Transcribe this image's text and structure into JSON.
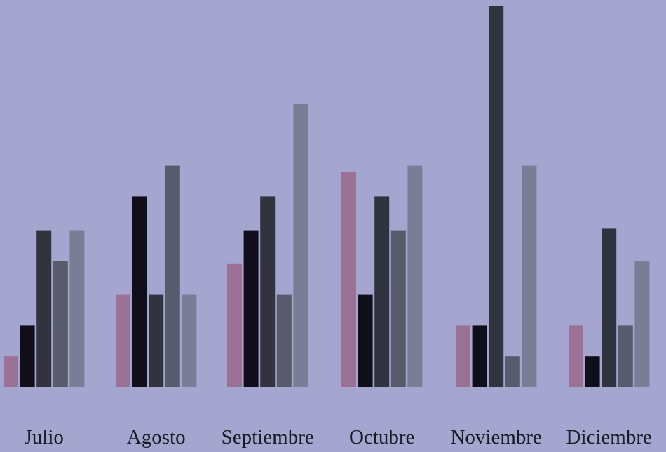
{
  "chart_data": {
    "type": "bar",
    "categories": [
      "Julio",
      "Agosto",
      "Septiembre",
      "Octubre",
      "Noviembre",
      "Diciembre"
    ],
    "series": [
      {
        "values": [
          1,
          3,
          4,
          7,
          2,
          2
        ],
        "color": "#9b7196"
      },
      {
        "values": [
          2,
          6.2,
          5.1,
          3,
          2,
          1
        ],
        "color": "#100e18"
      },
      {
        "values": [
          5.1,
          3,
          6.2,
          6.2,
          12.4,
          5.15
        ],
        "color": "#31333f"
      },
      {
        "values": [
          4.1,
          7.2,
          3,
          5.1,
          1,
          2
        ],
        "color": "#575b6b"
      },
      {
        "values": [
          5.1,
          3,
          9.2,
          7.2,
          7.2,
          4.1
        ],
        "color": "#7b7d96"
      }
    ],
    "background": "#a5a6d0",
    "grid": false,
    "legend": "none",
    "title": "",
    "xlabel": "",
    "ylabel": ""
  }
}
